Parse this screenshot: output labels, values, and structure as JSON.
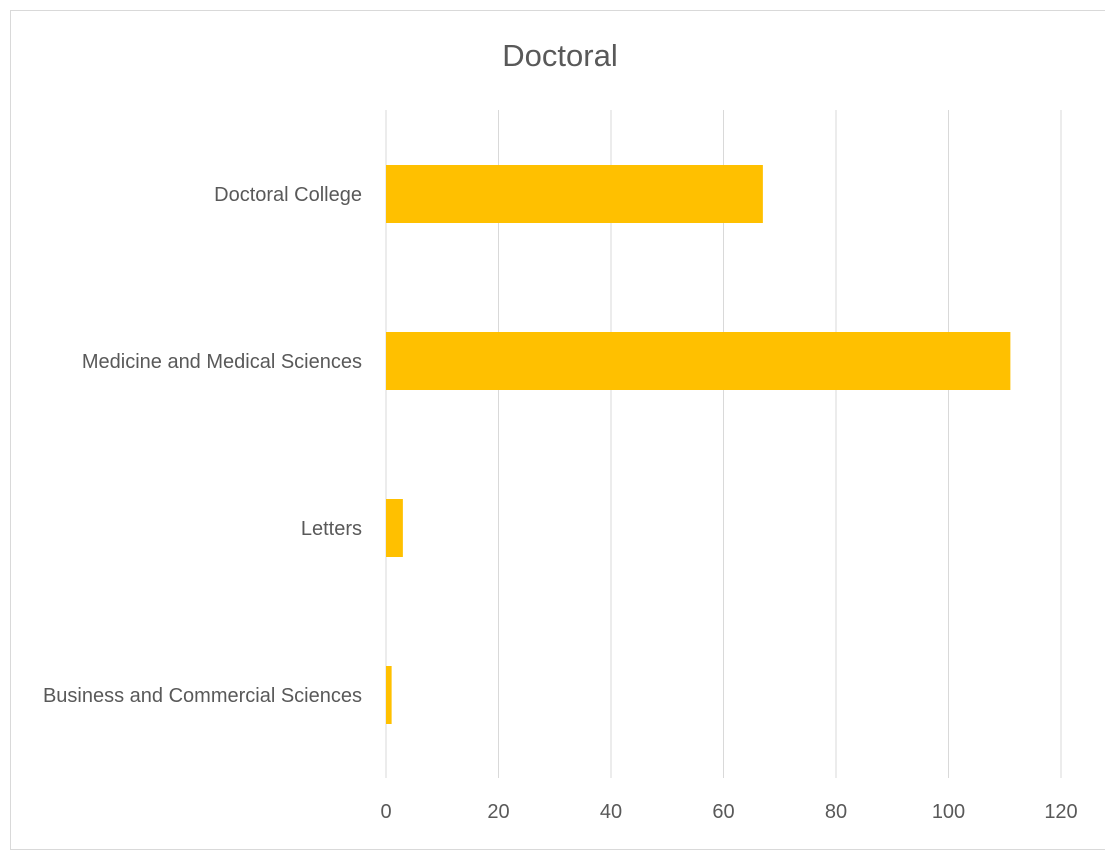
{
  "chart_data": {
    "type": "bar",
    "orientation": "horizontal",
    "title": "Doctoral",
    "xlabel": "",
    "ylabel": "",
    "categories": [
      "Doctoral College",
      "Medicine and Medical Sciences",
      "Letters",
      "Business and Commercial Sciences"
    ],
    "values": [
      67,
      111,
      3,
      1
    ],
    "xlim": [
      0,
      120
    ],
    "ticks": [
      "0",
      "20",
      "40",
      "60",
      "80",
      "100",
      "120"
    ],
    "tick_values": [
      0,
      20,
      40,
      60,
      80,
      100,
      120
    ],
    "grid": true,
    "legend": "none",
    "bar_color": "#FFC000"
  }
}
